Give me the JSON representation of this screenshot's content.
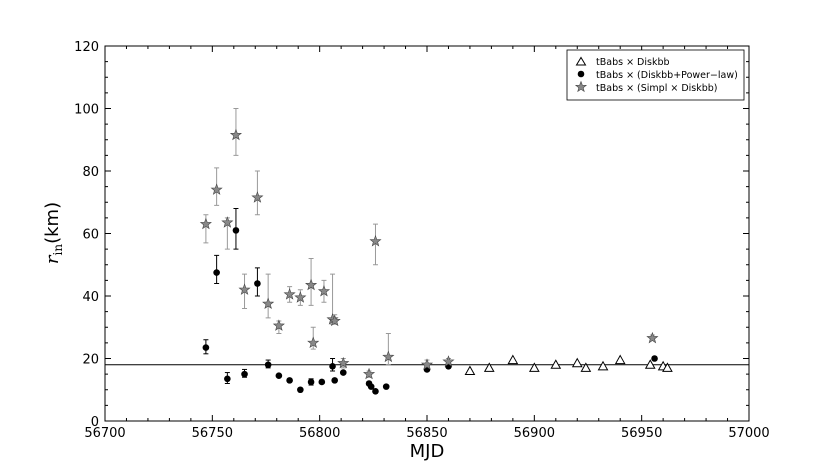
{
  "chart_data": {
    "type": "scatter",
    "xlabel": "MJD",
    "ylabel_main": "r",
    "ylabel_sub": "in",
    "ylabel_unit": "(km)",
    "xlim": [
      56700,
      57000
    ],
    "ylim": [
      0,
      120
    ],
    "xticks": [
      56700,
      56750,
      56800,
      56850,
      56900,
      56950,
      57000
    ],
    "yticks": [
      0,
      20,
      40,
      60,
      80,
      100,
      120
    ],
    "hline": 18,
    "legend_position": "top-right",
    "series": [
      {
        "name": "tBabs × Diskbb",
        "marker": "open-triangle",
        "color": "#000000",
        "points": [
          {
            "x": 56870,
            "y": 16
          },
          {
            "x": 56879,
            "y": 17
          },
          {
            "x": 56890,
            "y": 19.5
          },
          {
            "x": 56900,
            "y": 17
          },
          {
            "x": 56910,
            "y": 18
          },
          {
            "x": 56920,
            "y": 18.5
          },
          {
            "x": 56924,
            "y": 17
          },
          {
            "x": 56932,
            "y": 17.5
          },
          {
            "x": 56940,
            "y": 19.5
          },
          {
            "x": 56954,
            "y": 18
          },
          {
            "x": 56960,
            "y": 17.5
          },
          {
            "x": 56962,
            "y": 17
          }
        ]
      },
      {
        "name": "tBabs × (Diskbb+Power−law)",
        "marker": "filled-circle",
        "color": "#000000",
        "points": [
          {
            "x": 56747,
            "y": 23.5,
            "lo": 21.5,
            "hi": 26
          },
          {
            "x": 56752,
            "y": 47.5,
            "lo": 44,
            "hi": 53
          },
          {
            "x": 56757,
            "y": 13.5,
            "lo": 12,
            "hi": 15.5
          },
          {
            "x": 56761,
            "y": 61,
            "lo": 55,
            "hi": 68
          },
          {
            "x": 56765,
            "y": 15,
            "lo": 14,
            "hi": 16.5
          },
          {
            "x": 56771,
            "y": 44,
            "lo": 40,
            "hi": 49
          },
          {
            "x": 56776,
            "y": 18,
            "lo": 17,
            "hi": 19.5
          },
          {
            "x": 56781,
            "y": 14.5
          },
          {
            "x": 56786,
            "y": 13
          },
          {
            "x": 56791,
            "y": 10
          },
          {
            "x": 56796,
            "y": 12.5,
            "lo": 11.5,
            "hi": 13.5
          },
          {
            "x": 56801,
            "y": 12.5
          },
          {
            "x": 56806,
            "y": 17.5,
            "lo": 16,
            "hi": 20
          },
          {
            "x": 56807,
            "y": 13
          },
          {
            "x": 56811,
            "y": 15.5
          },
          {
            "x": 56823,
            "y": 12
          },
          {
            "x": 56824,
            "y": 11
          },
          {
            "x": 56826,
            "y": 9.5
          },
          {
            "x": 56831,
            "y": 11
          },
          {
            "x": 56850,
            "y": 16.5
          },
          {
            "x": 56860,
            "y": 17.5
          },
          {
            "x": 56956,
            "y": 20
          }
        ]
      },
      {
        "name": "tBabs × (Simpl × Diskbb)",
        "marker": "star",
        "color": "#888888",
        "points": [
          {
            "x": 56747,
            "y": 63,
            "lo": 57,
            "hi": 66
          },
          {
            "x": 56752,
            "y": 74,
            "lo": 69,
            "hi": 81
          },
          {
            "x": 56757,
            "y": 63.5,
            "lo": 55,
            "hi": 65
          },
          {
            "x": 56761,
            "y": 91.5,
            "lo": 85,
            "hi": 100
          },
          {
            "x": 56765,
            "y": 42,
            "lo": 36,
            "hi": 47
          },
          {
            "x": 56771,
            "y": 71.5,
            "lo": 66,
            "hi": 80
          },
          {
            "x": 56776,
            "y": 37.5,
            "lo": 33,
            "hi": 47
          },
          {
            "x": 56781,
            "y": 30.5,
            "lo": 28,
            "hi": 32
          },
          {
            "x": 56786,
            "y": 40.5,
            "lo": 38,
            "hi": 43
          },
          {
            "x": 56791,
            "y": 39.5,
            "lo": 37,
            "hi": 42
          },
          {
            "x": 56796,
            "y": 43.5,
            "lo": 37,
            "hi": 52
          },
          {
            "x": 56797,
            "y": 25,
            "lo": 23,
            "hi": 30
          },
          {
            "x": 56802,
            "y": 41.5,
            "lo": 38,
            "hi": 45
          },
          {
            "x": 56806,
            "y": 32.5,
            "lo": 31,
            "hi": 47
          },
          {
            "x": 56807,
            "y": 32,
            "lo": 31,
            "hi": 34
          },
          {
            "x": 56811,
            "y": 18.5,
            "lo": 17,
            "hi": 20
          },
          {
            "x": 56823,
            "y": 15,
            "lo": 14,
            "hi": 16
          },
          {
            "x": 56826,
            "y": 57.5,
            "lo": 50,
            "hi": 63
          },
          {
            "x": 56832,
            "y": 20.5,
            "lo": 18,
            "hi": 28
          },
          {
            "x": 56850,
            "y": 18,
            "lo": 17,
            "hi": 19.5
          },
          {
            "x": 56860,
            "y": 19,
            "lo": 18,
            "hi": 20
          },
          {
            "x": 56955,
            "y": 26.5,
            "lo": 26,
            "hi": 27.5
          }
        ]
      }
    ]
  }
}
